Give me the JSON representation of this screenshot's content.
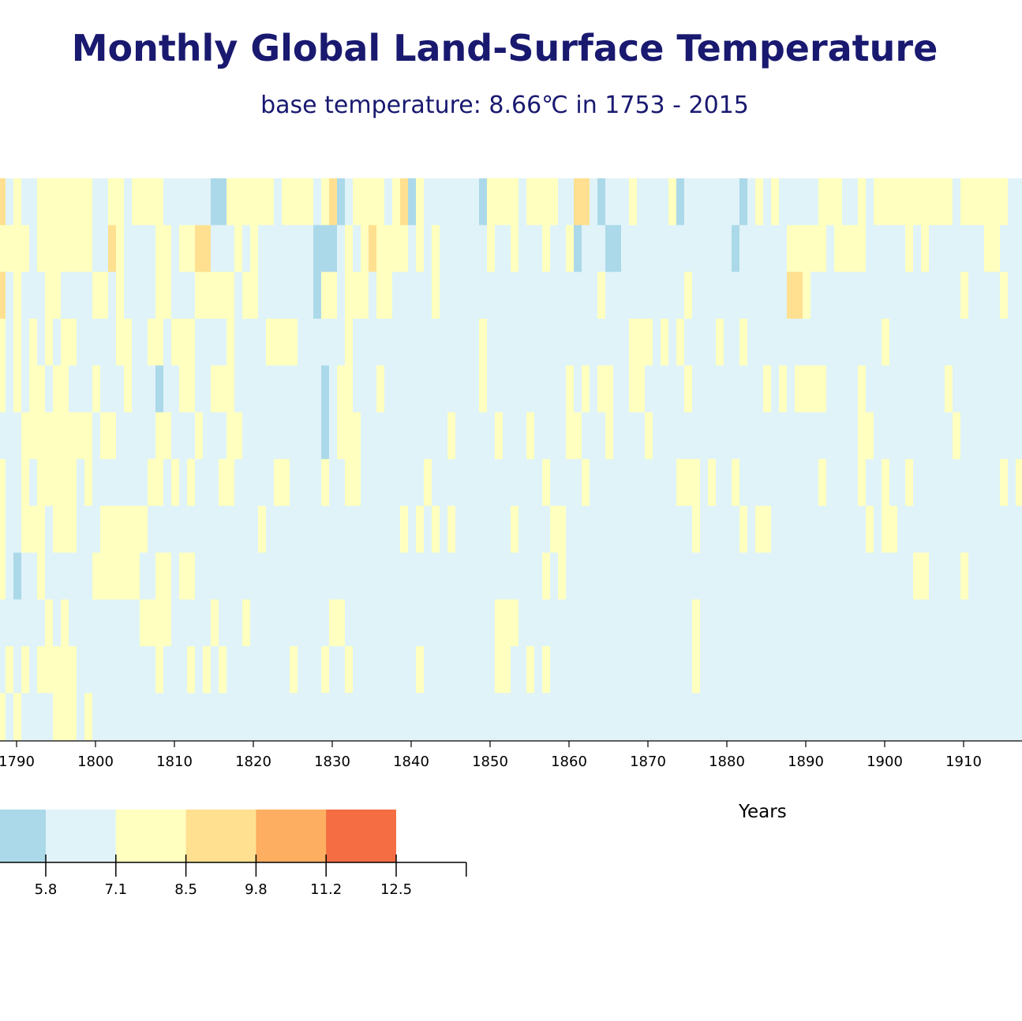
{
  "chart_data": {
    "type": "heatmap",
    "title": "Monthly Global Land-Surface Temperature",
    "subtitle": "base temperature: 8.66℃ in 1753 - 2015",
    "xlabel": "Years",
    "x_ticks": [
      1790,
      1800,
      1810,
      1820,
      1830,
      1840,
      1850,
      1860,
      1870,
      1880,
      1890,
      1900,
      1910
    ],
    "year_range_visible": [
      1788,
      1915
    ],
    "rows": 12,
    "colorbar": {
      "ticks": [
        "5.8",
        "7.1",
        "8.5",
        "9.8",
        "11.2",
        "12.5"
      ],
      "bins": [
        {
          "range": [
            4.4,
            5.8
          ],
          "color": "#abd9e9"
        },
        {
          "range": [
            5.8,
            7.1
          ],
          "color": "#e0f3f8"
        },
        {
          "range": [
            7.1,
            8.5
          ],
          "color": "#ffffbf"
        },
        {
          "range": [
            8.5,
            9.8
          ],
          "color": "#fee090"
        },
        {
          "range": [
            9.8,
            11.2
          ],
          "color": "#fdae61"
        },
        {
          "range": [
            11.2,
            12.5
          ],
          "color": "#f46d43"
        },
        {
          "range": [
            12.5,
            13.9
          ],
          "color": "#ffffff"
        }
      ]
    },
    "grid": false,
    "cell_bins": [
      "31211222222211221222211111100222222122221230122221230211111110222212222113310111211112011111110121211111222112122222222221222222112111",
      "22221222222211321111221223311121211111110001212322221212111111211211121120111001111111111111101111112222212222111112121111111221111111",
      "31211122111122121111221112222212211111110221222122111112111111111111111111112111111111121111111111113321111111111111111111211112112221",
      "21212121221111122112212221111211112222111111211111111111111112111111111111111111222121211112112111111111111111112111111111111111111111",
      "21212212211121112111011221122211111111111012211121111111111112111111111121212211221111121111111112121222211112111111111121111111111111",
      "11122222222212211111221112111221111111111012221111111111121111121112111122111211112111111111111111111111111112211111111112111111111111",
      "21121222221211111112212121112211111221111211221111111121111111111111121111211111111111222121121111111111211112112112111111111112121111",
      "21122212221112222221111111111111121111111111111111121212121111111211112211111111111111112111112122111111111111212211111111111111112111",
      "21011211111122222211221221111111111111111111111111111111111111111111121211111111111111111111111111111111111111111111221111211111111112",
      "11111121211111111122221111121112111111111122111111111111111111122211111111111111111111112111111111111111111111111111111111111111111112",
      "12121222221111111111211121212111111112111211211111111211111111122112121111111111111111112111111111111111111111111111111111111111111112",
      "21211112221211111111111111111111111111111111111111111111111111111111111111111111111111111111111111111111111111111111111111111111111112"
    ]
  }
}
